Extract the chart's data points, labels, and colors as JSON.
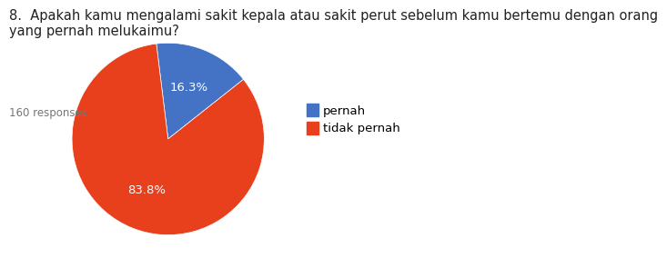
{
  "title": "8.  Apakah kamu mengalami sakit kepala atau sakit perut sebelum kamu bertemu dengan orang\nyang pernah melukaimu?",
  "subtitle": "160 responses",
  "slices": [
    16.3,
    83.8
  ],
  "labels": [
    "pernah",
    "tidak pernah"
  ],
  "colors": [
    "#4472c4",
    "#e8401c"
  ],
  "startangle": 97,
  "pct_labels": [
    "16.3%",
    "83.8%"
  ],
  "pct_label_colors": [
    "white",
    "white"
  ],
  "background_color": "#ffffff",
  "title_fontsize": 10.5,
  "subtitle_fontsize": 8.5,
  "legend_fontsize": 9.5,
  "pct_fontsize": 9.5
}
